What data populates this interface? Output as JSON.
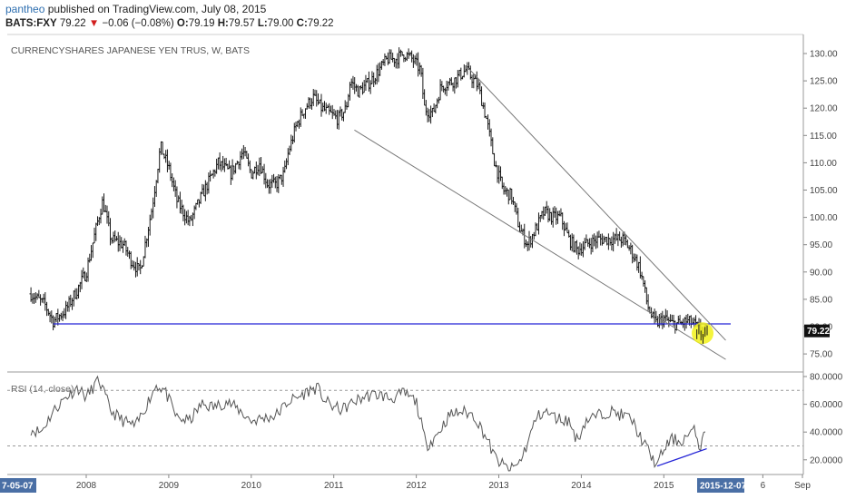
{
  "header": {
    "author": "pantheo",
    "published": "published on TradingView.com, July 08, 2015",
    "symbol": "BATS:FXY",
    "last": "79.22",
    "change": "−0.06 (−0.08%)",
    "o_label": "O:",
    "o_value": "79.19",
    "h_label": "H:",
    "h_value": "79.57",
    "l_label": "L:",
    "l_value": "79.00",
    "c_label": "C:",
    "c_value": "79.22"
  },
  "chart_data": [
    {
      "type": "ohlc",
      "title": "CURRENCYSHARES JAPANESE YEN TRUS, W, BATS",
      "ylim": [
        73,
        132
      ],
      "y_ticks": [
        "130.00",
        "125.00",
        "120.00",
        "115.00",
        "110.00",
        "105.00",
        "100.00",
        "95.00",
        "90.00",
        "85.00",
        "80.00",
        "75.00"
      ],
      "x_ticks": [
        "2008",
        "2009",
        "2010",
        "2011",
        "2012",
        "2013",
        "2014",
        "2015",
        "6",
        "Sep"
      ],
      "x_range_labels": [
        "7-05-07",
        "2015-12-07"
      ],
      "last_price_label": "79.22",
      "path": [
        [
          2007.33,
          86
        ],
        [
          2007.5,
          84
        ],
        [
          2007.6,
          81
        ],
        [
          2007.75,
          83
        ],
        [
          2007.9,
          87
        ],
        [
          2008.0,
          90
        ],
        [
          2008.15,
          100
        ],
        [
          2008.2,
          103
        ],
        [
          2008.3,
          96
        ],
        [
          2008.45,
          95
        ],
        [
          2008.55,
          92
        ],
        [
          2008.65,
          90
        ],
        [
          2008.8,
          102
        ],
        [
          2008.9,
          113
        ],
        [
          2009.0,
          109
        ],
        [
          2009.1,
          103
        ],
        [
          2009.25,
          99
        ],
        [
          2009.4,
          104
        ],
        [
          2009.5,
          107
        ],
        [
          2009.6,
          110
        ],
        [
          2009.75,
          108
        ],
        [
          2009.9,
          112
        ],
        [
          2010.0,
          108
        ],
        [
          2010.1,
          110
        ],
        [
          2010.2,
          106
        ],
        [
          2010.3,
          106
        ],
        [
          2010.4,
          108
        ],
        [
          2010.45,
          112
        ],
        [
          2010.55,
          117
        ],
        [
          2010.65,
          120
        ],
        [
          2010.75,
          122
        ],
        [
          2010.85,
          120
        ],
        [
          2010.95,
          119
        ],
        [
          2011.05,
          118
        ],
        [
          2011.15,
          120
        ],
        [
          2011.2,
          125
        ],
        [
          2011.3,
          123
        ],
        [
          2011.45,
          125
        ],
        [
          2011.55,
          127
        ],
        [
          2011.65,
          129
        ],
        [
          2011.75,
          129
        ],
        [
          2011.85,
          130
        ],
        [
          2011.95,
          129
        ],
        [
          2012.05,
          127
        ],
        [
          2012.1,
          120
        ],
        [
          2012.2,
          119
        ],
        [
          2012.3,
          124
        ],
        [
          2012.45,
          125
        ],
        [
          2012.6,
          127
        ],
        [
          2012.75,
          124
        ],
        [
          2012.85,
          118
        ],
        [
          2012.95,
          110
        ],
        [
          2013.05,
          105
        ],
        [
          2013.15,
          104
        ],
        [
          2013.25,
          98
        ],
        [
          2013.35,
          95
        ],
        [
          2013.45,
          98
        ],
        [
          2013.55,
          101
        ],
        [
          2013.65,
          100
        ],
        [
          2013.75,
          100
        ],
        [
          2013.85,
          96
        ],
        [
          2013.95,
          94
        ],
        [
          2014.05,
          95
        ],
        [
          2014.2,
          96
        ],
        [
          2014.35,
          96
        ],
        [
          2014.5,
          96
        ],
        [
          2014.6,
          94
        ],
        [
          2014.7,
          91
        ],
        [
          2014.75,
          88
        ],
        [
          2014.8,
          84
        ],
        [
          2014.85,
          82
        ],
        [
          2014.9,
          80.5
        ],
        [
          2015.0,
          81.5
        ],
        [
          2015.1,
          80.5
        ],
        [
          2015.2,
          80.5
        ],
        [
          2015.28,
          81
        ],
        [
          2015.35,
          80.6
        ],
        [
          2015.43,
          79.5
        ],
        [
          2015.52,
          79.22
        ]
      ],
      "annotations": {
        "horizontal_support": 80.5,
        "upper_trendline": [
          [
            2012.62,
            127.5
          ],
          [
            2015.75,
            77.5
          ]
        ],
        "lower_trendline": [
          [
            2011.25,
            116
          ],
          [
            2015.75,
            74
          ]
        ],
        "highlight_at": [
          2015.47,
          78.8
        ]
      }
    },
    {
      "type": "line",
      "title": "RSI (14, close)",
      "ylim": [
        12,
        80
      ],
      "y_ticks": [
        "80.0000",
        "60.0000",
        "40.0000",
        "20.0000"
      ],
      "bands": [
        70,
        30
      ],
      "path": [
        [
          2007.33,
          42
        ],
        [
          2007.45,
          40
        ],
        [
          2007.6,
          55
        ],
        [
          2007.75,
          65
        ],
        [
          2007.9,
          72
        ],
        [
          2008.0,
          65
        ],
        [
          2008.15,
          78
        ],
        [
          2008.3,
          55
        ],
        [
          2008.45,
          48
        ],
        [
          2008.6,
          44
        ],
        [
          2008.75,
          62
        ],
        [
          2008.85,
          74
        ],
        [
          2008.95,
          70
        ],
        [
          2009.1,
          50
        ],
        [
          2009.25,
          48
        ],
        [
          2009.4,
          60
        ],
        [
          2009.55,
          58
        ],
        [
          2009.7,
          62
        ],
        [
          2009.85,
          56
        ],
        [
          2010.0,
          48
        ],
        [
          2010.15,
          50
        ],
        [
          2010.3,
          52
        ],
        [
          2010.45,
          62
        ],
        [
          2010.6,
          66
        ],
        [
          2010.7,
          70
        ],
        [
          2010.8,
          72
        ],
        [
          2010.9,
          62
        ],
        [
          2011.0,
          58
        ],
        [
          2011.1,
          56
        ],
        [
          2011.25,
          62
        ],
        [
          2011.4,
          66
        ],
        [
          2011.55,
          67
        ],
        [
          2011.7,
          64
        ],
        [
          2011.85,
          68
        ],
        [
          2012.0,
          62
        ],
        [
          2012.12,
          30
        ],
        [
          2012.25,
          38
        ],
        [
          2012.4,
          52
        ],
        [
          2012.55,
          55
        ],
        [
          2012.7,
          52
        ],
        [
          2012.85,
          36
        ],
        [
          2012.95,
          22
        ],
        [
          2013.05,
          16
        ],
        [
          2013.15,
          13
        ],
        [
          2013.25,
          18
        ],
        [
          2013.35,
          32
        ],
        [
          2013.45,
          50
        ],
        [
          2013.55,
          55
        ],
        [
          2013.7,
          50
        ],
        [
          2013.85,
          48
        ],
        [
          2013.95,
          34
        ],
        [
          2014.05,
          48
        ],
        [
          2014.2,
          52
        ],
        [
          2014.35,
          55
        ],
        [
          2014.5,
          52
        ],
        [
          2014.6,
          50
        ],
        [
          2014.7,
          38
        ],
        [
          2014.78,
          30
        ],
        [
          2014.85,
          22
        ],
        [
          2014.92,
          16
        ],
        [
          2015.0,
          28
        ],
        [
          2015.1,
          35
        ],
        [
          2015.2,
          33
        ],
        [
          2015.3,
          38
        ],
        [
          2015.38,
          41
        ],
        [
          2015.43,
          29
        ],
        [
          2015.52,
          41
        ]
      ],
      "annotations": {
        "divergence_line": [
          [
            2014.92,
            15.5
          ],
          [
            2015.52,
            28
          ]
        ]
      }
    }
  ]
}
